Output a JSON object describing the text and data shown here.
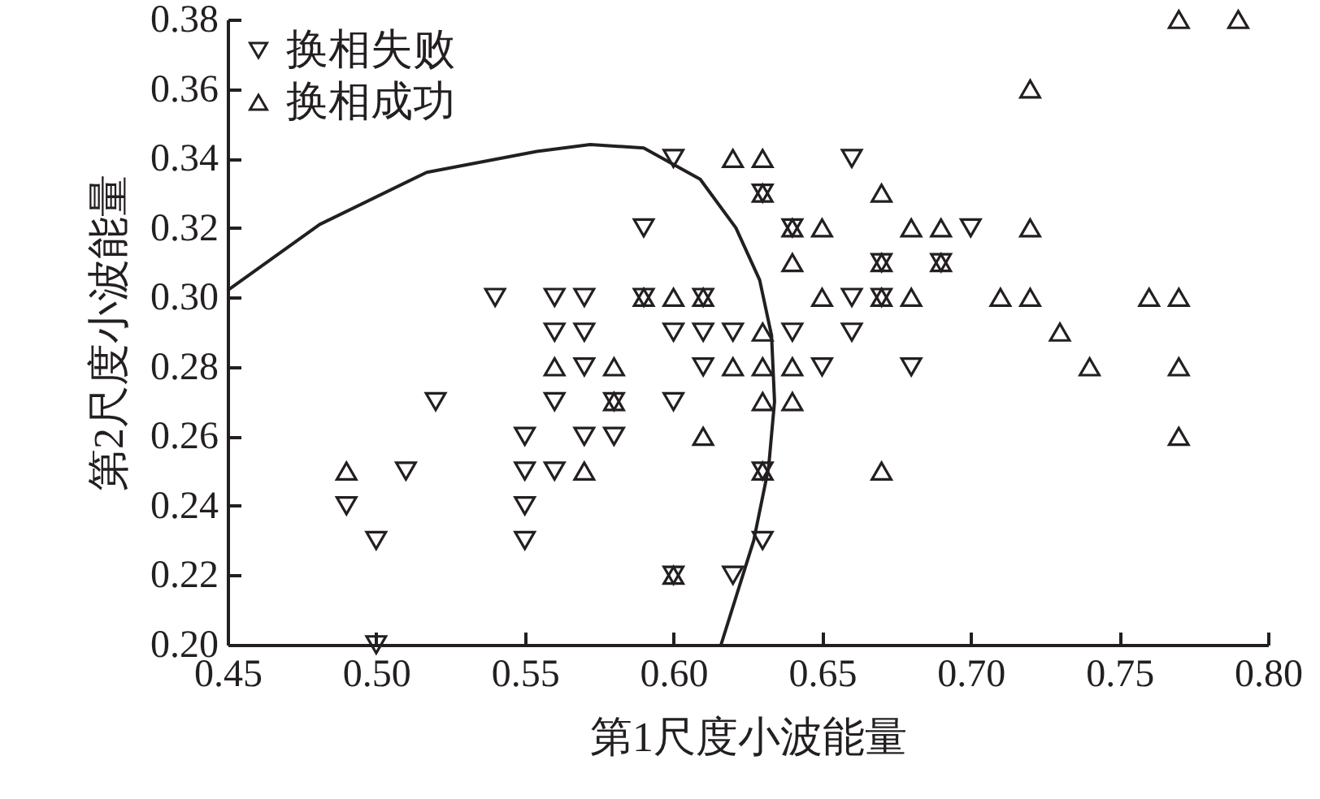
{
  "chart_data": {
    "type": "scatter",
    "xlabel": "第1尺度小波能量",
    "ylabel": "第2尺度小波能量",
    "xlim": [
      0.45,
      0.8
    ],
    "xticks": [
      0.45,
      {
        "value": 0.5,
        "label": "0.50"
      },
      0.55,
      {
        "value": 0.6,
        "label": "0.60"
      },
      0.65,
      {
        "value": 0.7,
        "label": "0.70"
      },
      0.75,
      {
        "value": 0.8,
        "label": "0.80"
      }
    ],
    "ylim": [
      0.2,
      0.38
    ],
    "yticks": [
      {
        "value": 0.2,
        "label": "0.20"
      },
      0.22,
      0.24,
      0.26,
      0.28,
      {
        "value": 0.3,
        "label": "0.30"
      },
      0.32,
      0.34,
      0.36,
      0.38
    ],
    "grid": false,
    "legend": "top left",
    "series": [
      {
        "name": "换相失败",
        "marker": "triangle-down",
        "color": "#231f20",
        "x": [
          0.49,
          0.5,
          0.5,
          0.51,
          0.52,
          0.54,
          0.55,
          0.55,
          0.55,
          0.55,
          0.56,
          0.56,
          0.56,
          0.56,
          0.57,
          0.57,
          0.57,
          0.57,
          0.58,
          0.58,
          0.59,
          0.59,
          0.6,
          0.6,
          0.6,
          0.6,
          0.61,
          0.61,
          0.61,
          0.62,
          0.62,
          0.63,
          0.63,
          0.63,
          0.64,
          0.64,
          0.65,
          0.66,
          0.66,
          0.66,
          0.67,
          0.67,
          0.68,
          0.69,
          0.7
        ],
        "values": [
          0.24,
          0.23,
          0.2,
          0.25,
          0.27,
          0.3,
          0.26,
          0.25,
          0.24,
          0.23,
          0.3,
          0.29,
          0.27,
          0.25,
          0.3,
          0.29,
          0.28,
          0.26,
          0.27,
          0.26,
          0.32,
          0.3,
          0.34,
          0.29,
          0.27,
          0.22,
          0.3,
          0.29,
          0.28,
          0.29,
          0.22,
          0.33,
          0.25,
          0.23,
          0.32,
          0.29,
          0.28,
          0.34,
          0.3,
          0.29,
          0.31,
          0.3,
          0.28,
          0.31,
          0.32
        ]
      },
      {
        "name": "换相成功",
        "marker": "triangle",
        "color": "#231f20",
        "x": [
          0.49,
          0.56,
          0.57,
          0.58,
          0.58,
          0.59,
          0.6,
          0.6,
          0.61,
          0.61,
          0.62,
          0.62,
          0.63,
          0.63,
          0.63,
          0.63,
          0.63,
          0.63,
          0.64,
          0.64,
          0.64,
          0.64,
          0.65,
          0.65,
          0.67,
          0.67,
          0.67,
          0.67,
          0.68,
          0.68,
          0.69,
          0.69,
          0.71,
          0.72,
          0.72,
          0.72,
          0.73,
          0.74,
          0.76,
          0.77,
          0.77,
          0.77,
          0.77,
          0.79
        ],
        "values": [
          0.25,
          0.28,
          0.25,
          0.28,
          0.27,
          0.3,
          0.3,
          0.22,
          0.3,
          0.26,
          0.34,
          0.28,
          0.34,
          0.33,
          0.29,
          0.28,
          0.27,
          0.25,
          0.32,
          0.31,
          0.28,
          0.27,
          0.32,
          0.3,
          0.33,
          0.31,
          0.3,
          0.25,
          0.32,
          0.3,
          0.32,
          0.31,
          0.3,
          0.36,
          0.32,
          0.3,
          0.29,
          0.28,
          0.3,
          0.38,
          0.3,
          0.28,
          0.26,
          0.38
        ]
      },
      {
        "type": "line",
        "marker": "none",
        "color": "#231f20",
        "x": [
          0.45,
          0.481,
          0.517,
          0.554,
          0.572,
          0.59,
          0.609,
          0.621,
          0.629,
          0.633,
          0.634,
          0.632,
          0.627,
          0.616
        ],
        "values": [
          0.302,
          0.321,
          0.336,
          0.342,
          0.344,
          0.343,
          0.334,
          0.32,
          0.305,
          0.289,
          0.27,
          0.251,
          0.23,
          0.2
        ]
      }
    ]
  }
}
